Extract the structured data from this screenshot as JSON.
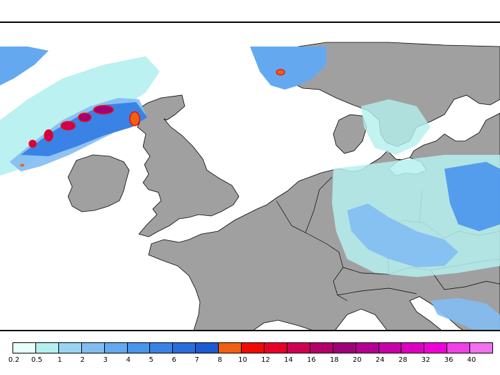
{
  "map": {
    "land_color": "#a0a0a0",
    "sea_color": "#ffffff",
    "coast_color": "#000000"
  },
  "legend": {
    "colors": [
      "#e8fffb",
      "#b4f0ee",
      "#9ad4f2",
      "#82bdf2",
      "#64a9f0",
      "#4a95ec",
      "#3a82e6",
      "#2a6ddc",
      "#1c5bd2",
      "#f06010",
      "#f00a00",
      "#e80028",
      "#d00050",
      "#b40068",
      "#a00078",
      "#b40090",
      "#c800a8",
      "#dc00c0",
      "#ee00d8",
      "#f040e6",
      "#f070ee"
    ],
    "labels": [
      "0.2",
      "0.5",
      "1",
      "2",
      "3",
      "4",
      "5",
      "6",
      "7",
      "8",
      "10",
      "12",
      "14",
      "16",
      "18",
      "20",
      "24",
      "28",
      "32",
      "36",
      "40"
    ]
  }
}
